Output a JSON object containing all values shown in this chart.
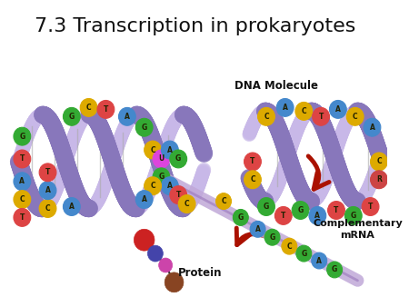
{
  "title": "7.3 Transcription in prokaryotes",
  "title_fontsize": 16,
  "background_color": "#ffffff",
  "dna_label": "DNA Molecule",
  "mrna_label": "Complementary\nmRNA",
  "protein_label": "Protein",
  "helix_color_dark": "#8877bb",
  "helix_color_light": "#c8b8e8",
  "helix_color_mid": "#aa99dd",
  "nucleotide_colors": {
    "A": "#4488cc",
    "T": "#dd4444",
    "G": "#33aa33",
    "C": "#ddaa00",
    "U": "#dd44dd",
    "R": "#cc4444"
  },
  "arrow_color": "#aa1100",
  "mrna_strand_color": "#c0a8d8",
  "protein_colors": [
    "#cc2222",
    "#4444aa",
    "#cc44aa",
    "#884422"
  ]
}
